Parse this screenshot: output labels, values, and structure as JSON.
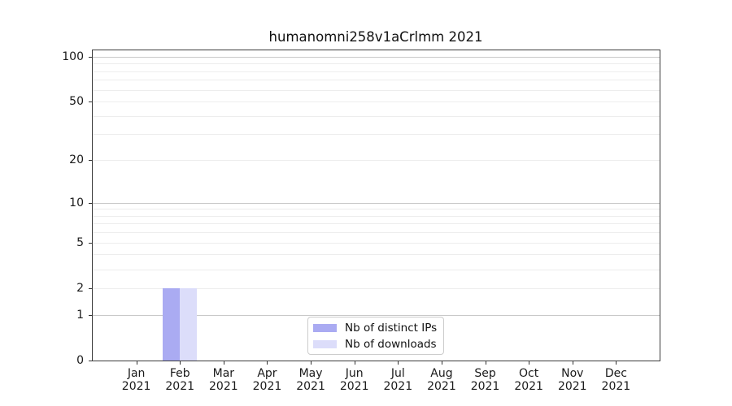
{
  "chart_data": {
    "type": "bar",
    "title": "humanomni258v1aCrlmm 2021",
    "year_label": "2021",
    "categories": [
      "Jan",
      "Feb",
      "Mar",
      "Apr",
      "May",
      "Jun",
      "Jul",
      "Aug",
      "Sep",
      "Oct",
      "Nov",
      "Dec"
    ],
    "series": [
      {
        "id": "distinct-ips",
        "name": "Nb of distinct IPs",
        "color": "#aaabf2",
        "values": [
          0,
          2,
          0,
          0,
          0,
          0,
          0,
          0,
          0,
          0,
          0,
          0
        ]
      },
      {
        "id": "downloads",
        "name": "Nb of downloads",
        "color": "#dcddfa",
        "values": [
          0,
          2,
          0,
          0,
          0,
          0,
          0,
          0,
          0,
          0,
          0,
          0
        ]
      }
    ],
    "yscale": "log1p",
    "ylim": [
      0,
      110
    ],
    "yticks": [
      0,
      1,
      2,
      5,
      10,
      20,
      50,
      100
    ],
    "minor_gridlines": [
      2,
      3,
      4,
      5,
      6,
      7,
      8,
      9,
      20,
      30,
      40,
      50,
      60,
      70,
      80,
      90
    ],
    "major_gridlines": [
      1,
      10,
      100
    ],
    "grid": true,
    "legend_position": "lower-center"
  }
}
